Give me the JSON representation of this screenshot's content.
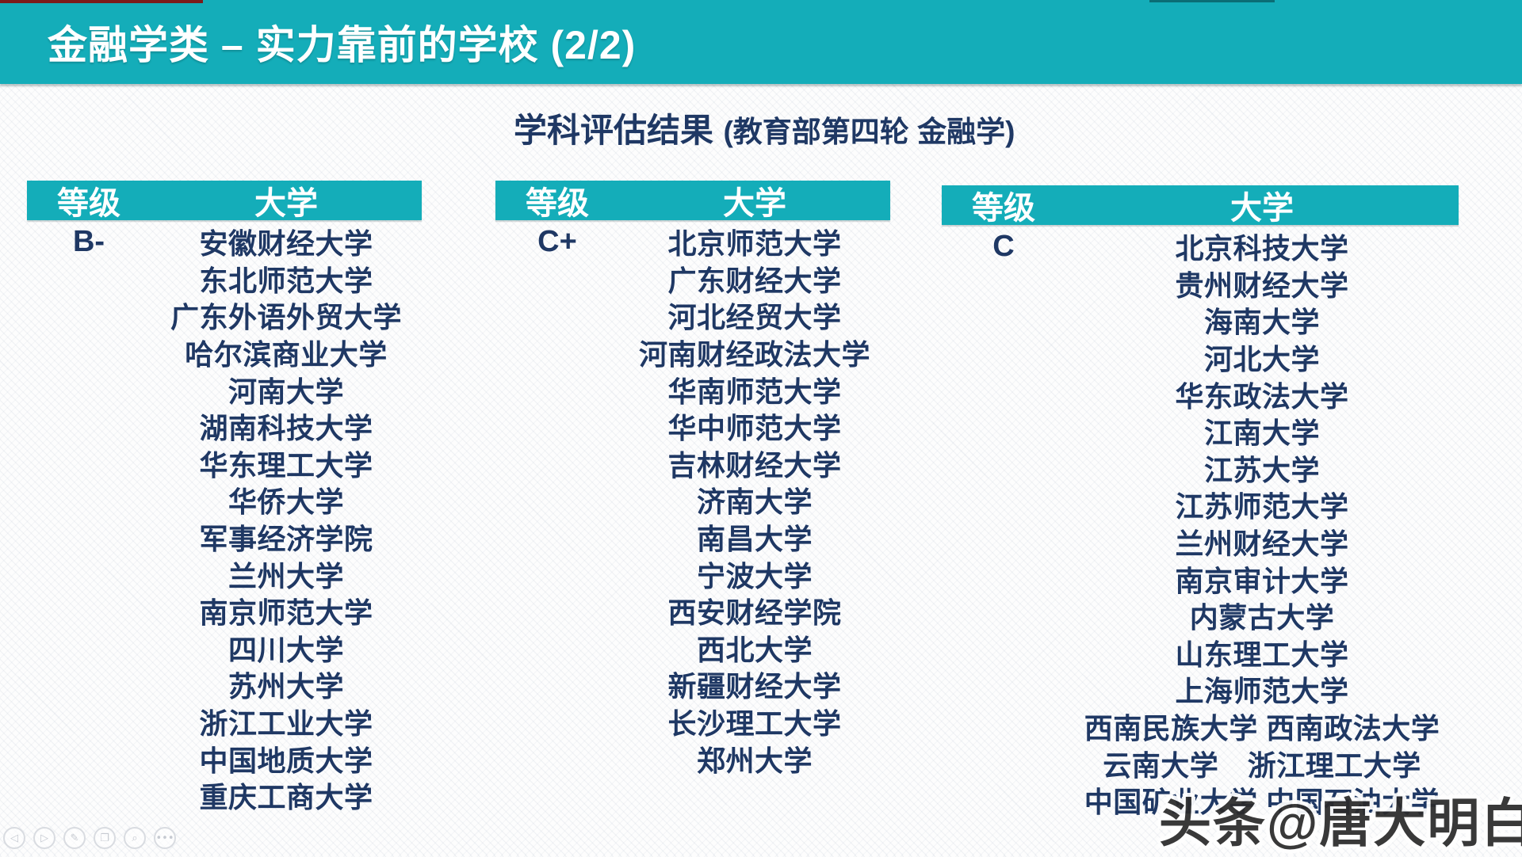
{
  "title": "金融学类 – 实力靠前的学校 (2/2)",
  "subtitle": {
    "main": "学科评估结果",
    "paren": "(教育部第四轮 金融学)"
  },
  "tables": [
    {
      "grade": "B-",
      "columns": [
        "等级",
        "大学"
      ],
      "universities": [
        "安徽财经大学",
        "东北师范大学",
        "广东外语外贸大学",
        "哈尔滨商业大学",
        "河南大学",
        "湖南科技大学",
        "华东理工大学",
        "华侨大学",
        "军事经济学院",
        "兰州大学",
        "南京师范大学",
        "四川大学",
        "苏州大学",
        "浙江工业大学",
        "中国地质大学",
        "重庆工商大学"
      ]
    },
    {
      "grade": "C+",
      "columns": [
        "等级",
        "大学"
      ],
      "universities": [
        "北京师范大学",
        "广东财经大学",
        "河北经贸大学",
        "河南财经政法大学",
        "华南师范大学",
        "华中师范大学",
        "吉林财经大学",
        "济南大学",
        "南昌大学",
        "宁波大学",
        "西安财经学院",
        "西北大学",
        "新疆财经大学",
        "长沙理工大学",
        "郑州大学"
      ]
    },
    {
      "grade": "C",
      "columns": [
        "等级",
        "大学"
      ],
      "universities": [
        "北京科技大学",
        "贵州财经大学",
        "海南大学",
        "河北大学",
        "华东政法大学",
        "江南大学",
        "江苏大学",
        "江苏师范大学",
        "兰州财经大学",
        "南京审计大学",
        "内蒙古大学",
        "山东理工大学",
        "上海师范大学",
        "西南民族大学 西南政法大学",
        "云南大学　浙江理工大学",
        "中国矿业大学 中国石油大学"
      ]
    }
  ],
  "watermark": {
    "text": "头条@唐大明白"
  },
  "toolbar": {
    "icons": [
      {
        "name": "previous",
        "glyph": "◁"
      },
      {
        "name": "play",
        "glyph": "▷"
      },
      {
        "name": "pen",
        "glyph": "✎"
      },
      {
        "name": "slides",
        "glyph": "❐"
      },
      {
        "name": "zoom",
        "glyph": "⌕"
      },
      {
        "name": "more",
        "glyph": "•••"
      }
    ]
  },
  "colors": {
    "teal_accent": "#14adb9",
    "text_navy": "#1f3864",
    "watermark_text": "#2b2b2b",
    "toolbar_icon_gray": "#c6cad1",
    "top_strip_red": "#7b1b1b"
  }
}
